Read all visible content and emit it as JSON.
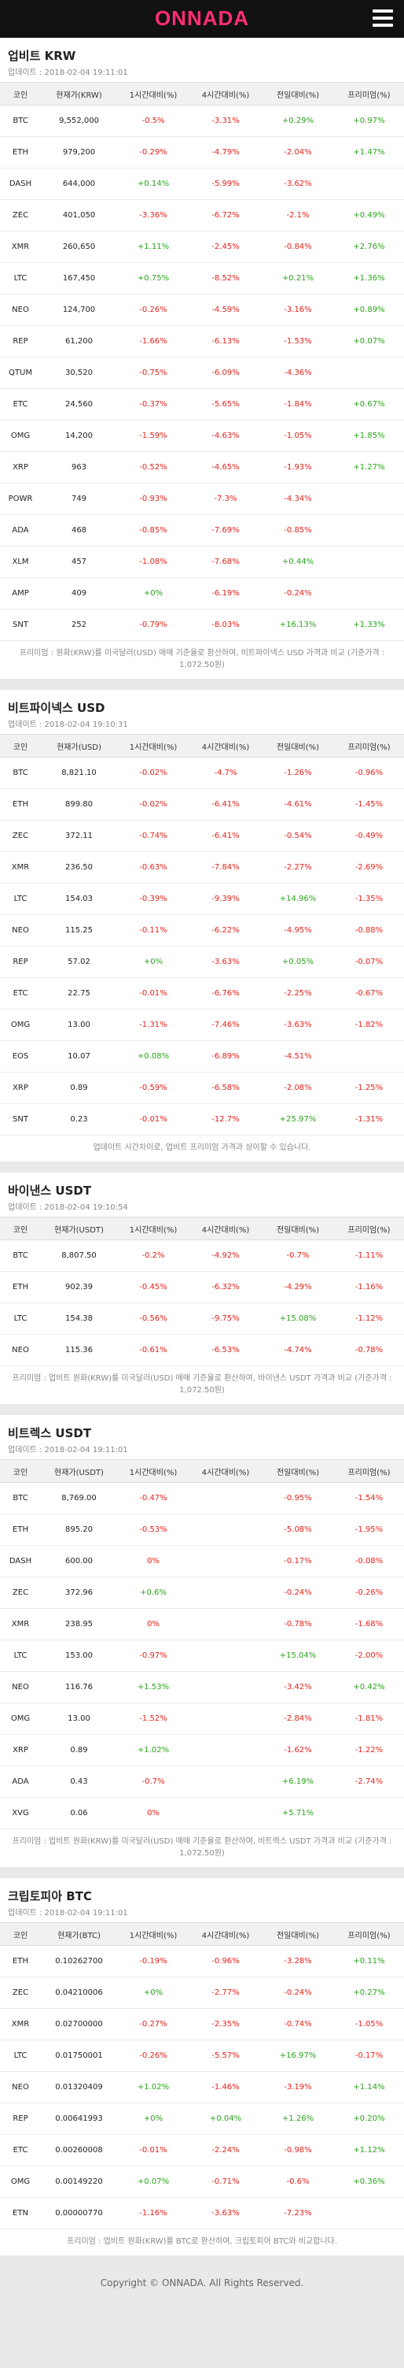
{
  "header": {
    "logo": "ONNADA"
  },
  "columns_common": {
    "coin": "코인",
    "h1": "1시간대비(%)",
    "h4": "4시간대비(%)",
    "d1": "전일대비(%)",
    "premium": "프리미엄(%)"
  },
  "sections": [
    {
      "title": "업비트 KRW",
      "update": "업데이트 : 2018-02-04 19:11:01",
      "price_header": "현재가(KRW)",
      "rows": [
        [
          "BTC",
          "9,552,000",
          "-0.5%",
          "-3.31%",
          "+0.29%",
          "+0.97%"
        ],
        [
          "ETH",
          "979,200",
          "-0.29%",
          "-4.79%",
          "-2.04%",
          "+1.47%"
        ],
        [
          "DASH",
          "644,000",
          "+0.14%",
          "-5.99%",
          "-3.62%",
          ""
        ],
        [
          "ZEC",
          "401,050",
          "-3.36%",
          "-6.72%",
          "-2.1%",
          "+0.49%"
        ],
        [
          "XMR",
          "260,650",
          "+1.11%",
          "-2.45%",
          "-0.84%",
          "+2.76%"
        ],
        [
          "LTC",
          "167,450",
          "+0.75%",
          "-8.52%",
          "+0.21%",
          "+1.36%"
        ],
        [
          "NEO",
          "124,700",
          "-0.26%",
          "-4.59%",
          "-3.16%",
          "+0.89%"
        ],
        [
          "REP",
          "61,200",
          "-1.66%",
          "-6.13%",
          "-1.53%",
          "+0.07%"
        ],
        [
          "QTUM",
          "30,520",
          "-0.75%",
          "-6.09%",
          "-4.36%",
          ""
        ],
        [
          "ETC",
          "24,560",
          "-0.37%",
          "-5.65%",
          "-1.84%",
          "+0.67%"
        ],
        [
          "OMG",
          "14,200",
          "-1.59%",
          "-4.63%",
          "-1.05%",
          "+1.85%"
        ],
        [
          "XRP",
          "963",
          "-0.52%",
          "-4.65%",
          "-1.93%",
          "+1.27%"
        ],
        [
          "POWR",
          "749",
          "-0.93%",
          "-7.3%",
          "-4.34%",
          ""
        ],
        [
          "ADA",
          "468",
          "-0.85%",
          "-7.69%",
          "-0.85%",
          ""
        ],
        [
          "XLM",
          "457",
          "-1.08%",
          "-7.68%",
          "+0.44%",
          ""
        ],
        [
          "AMP",
          "409",
          "+0%",
          "-6.19%",
          "-0.24%",
          ""
        ],
        [
          "SNT",
          "252",
          "-0.79%",
          "-8.03%",
          "+16.13%",
          "+1.33%"
        ]
      ],
      "note": "프리미엄 : 원화(KRW)를 미국달러(USD) 매매 기준율로 환산하여, 비트파이넥스 USD 가격과 비교 (기준가격 : 1,072.50원)"
    },
    {
      "title": "비트파이넥스 USD",
      "update": "업데이트 : 2018-02-04 19:10:31",
      "price_header": "현재가(USD)",
      "rows": [
        [
          "BTC",
          "8,821.10",
          "-0.02%",
          "-4.7%",
          "-1.26%",
          "-0.96%"
        ],
        [
          "ETH",
          "899.80",
          "-0.02%",
          "-6.41%",
          "-4.61%",
          "-1.45%"
        ],
        [
          "ZEC",
          "372.11",
          "-0.74%",
          "-6.41%",
          "-0.54%",
          "-0.49%"
        ],
        [
          "XMR",
          "236.50",
          "-0.63%",
          "-7.84%",
          "-2.27%",
          "-2.69%"
        ],
        [
          "LTC",
          "154.03",
          "-0.39%",
          "-9.39%",
          "+14.96%",
          "-1.35%"
        ],
        [
          "NEO",
          "115.25",
          "-0.11%",
          "-6.22%",
          "-4.95%",
          "-0.88%"
        ],
        [
          "REP",
          "57.02",
          "+0%",
          "-3.63%",
          "+0.05%",
          "-0.07%"
        ],
        [
          "ETC",
          "22.75",
          "-0.01%",
          "-6.76%",
          "-2.25%",
          "-0.67%"
        ],
        [
          "OMG",
          "13.00",
          "-1.31%",
          "-7.46%",
          "-3.63%",
          "-1.82%"
        ],
        [
          "EOS",
          "10.07",
          "+0.08%",
          "-6.89%",
          "-4.51%",
          ""
        ],
        [
          "XRP",
          "0.89",
          "-0.59%",
          "-6.58%",
          "-2.08%",
          "-1.25%"
        ],
        [
          "SNT",
          "0.23",
          "-0.01%",
          "-12.7%",
          "+25.97%",
          "-1.31%"
        ]
      ],
      "note": "업데이트 시간차이로, 업비트 프리미엄 가격과 상이할 수 있습니다."
    },
    {
      "title": "바이낸스 USDT",
      "update": "업데이트 : 2018-02-04 19:10:54",
      "price_header": "현재가(USDT)",
      "rows": [
        [
          "BTC",
          "8,807.50",
          "-0.2%",
          "-4.92%",
          "-0.7%",
          "-1.11%"
        ],
        [
          "ETH",
          "902.39",
          "-0.45%",
          "-6.32%",
          "-4.29%",
          "-1.16%"
        ],
        [
          "LTC",
          "154.38",
          "-0.56%",
          "-9.75%",
          "+15.08%",
          "-1.12%"
        ],
        [
          "NEO",
          "115.36",
          "-0.61%",
          "-6.53%",
          "-4.74%",
          "-0.78%"
        ]
      ],
      "note": "프리미엄 : 업비트 원화(KRW)를 미국달러(USD) 매매 기준율로 환산하여, 바이낸스 USDT 가격과 비교 (기준가격 : 1,072.50원)"
    },
    {
      "title": "비트렉스 USDT",
      "update": "업데이트 : 2018-02-04 19:11:01",
      "price_header": "현재가(USDT)",
      "rows": [
        [
          "BTC",
          "8,769.00",
          "-0.47%",
          "",
          "-0.95%",
          "-1.54%"
        ],
        [
          "ETH",
          "895.20",
          "-0.53%",
          "",
          "-5.08%",
          "-1.95%"
        ],
        [
          "DASH",
          "600.00",
          "0%",
          "",
          "-0.17%",
          "-0.08%"
        ],
        [
          "ZEC",
          "372.96",
          "+0.6%",
          "",
          "-0.24%",
          "-0.26%"
        ],
        [
          "XMR",
          "238.95",
          "0%",
          "",
          "-0.78%",
          "-1.68%"
        ],
        [
          "LTC",
          "153.00",
          "-0.97%",
          "",
          "+15.04%",
          "-2.00%"
        ],
        [
          "NEO",
          "116.76",
          "+1.53%",
          "",
          "-3.42%",
          "+0.42%"
        ],
        [
          "OMG",
          "13.00",
          "-1.52%",
          "",
          "-2.84%",
          "-1.81%"
        ],
        [
          "XRP",
          "0.89",
          "+1.02%",
          "",
          "-1.62%",
          "-1.22%"
        ],
        [
          "ADA",
          "0.43",
          "-0.7%",
          "",
          "+6.19%",
          "-2.74%"
        ],
        [
          "XVG",
          "0.06",
          "0%",
          "",
          "+5.71%",
          ""
        ]
      ],
      "note": "프리미엄 : 업비트 원화(KRW)를 미국달러(USD) 매매 기준율로 환산하여, 비트렉스 USDT 가격과 비교 (기준가격 : 1,072.50원)"
    },
    {
      "title": "크립토피아 BTC",
      "update": "업데이트 : 2018-02-04 19:11:01",
      "price_header": "현재가(BTC)",
      "rows": [
        [
          "ETH",
          "0.10262700",
          "-0.19%",
          "-0.96%",
          "-3.28%",
          "+0.11%"
        ],
        [
          "ZEC",
          "0.04210006",
          "+0%",
          "-2.77%",
          "-0.24%",
          "+0.27%"
        ],
        [
          "XMR",
          "0.02700000",
          "-0.27%",
          "-2.35%",
          "-0.74%",
          "-1.05%"
        ],
        [
          "LTC",
          "0.01750001",
          "-0.26%",
          "-5.57%",
          "+16.97%",
          "-0.17%"
        ],
        [
          "NEO",
          "0.01320409",
          "+1.02%",
          "-1.46%",
          "-3.19%",
          "+1.14%"
        ],
        [
          "REP",
          "0.00641993",
          "+0%",
          "+0.04%",
          "+1.26%",
          "+0.20%"
        ],
        [
          "ETC",
          "0.00260008",
          "-0.01%",
          "-2.24%",
          "-0.98%",
          "+1.12%"
        ],
        [
          "OMG",
          "0.00149220",
          "+0.07%",
          "-0.71%",
          "-0.6%",
          "+0.36%"
        ],
        [
          "ETN",
          "0.00000770",
          "-1.16%",
          "-3.63%",
          "-7.23%",
          ""
        ]
      ],
      "note": "프리미엄 : 업비트 원화(KRW)를 BTC로 환산하여, 크립토피아 BTC와 비교합니다."
    }
  ],
  "footer": {
    "copyright": "Copyright © ONNADA. All Rights Reserved."
  }
}
